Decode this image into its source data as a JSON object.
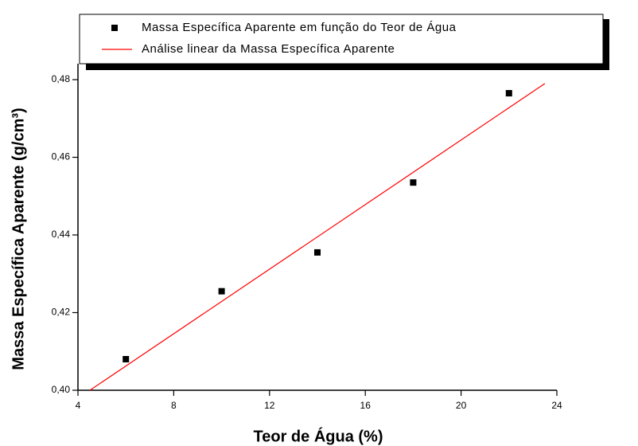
{
  "chart_data": {
    "type": "scatter",
    "xlabel": "Teor de Água (%)",
    "ylabel": "Massa Específica Aparente (g/cm³)",
    "xlim": [
      4,
      24
    ],
    "xticks": [
      4,
      8,
      12,
      16,
      20,
      24
    ],
    "ylim": [
      0.4,
      0.48
    ],
    "yticks": [
      {
        "value": 0.4,
        "label": "0,40"
      },
      {
        "value": 0.42,
        "label": "0,42"
      },
      {
        "value": 0.44,
        "label": "0,44"
      },
      {
        "value": 0.46,
        "label": "0,46"
      },
      {
        "value": 0.48,
        "label": "0,48"
      }
    ],
    "series": [
      {
        "name": "Massa Específica Aparente em função do Teor de Água",
        "color": "#000000",
        "style": "markers",
        "x": [
          6,
          10,
          14,
          18,
          22
        ],
        "values": [
          0.408,
          0.4255,
          0.4355,
          0.4535,
          0.4765
        ]
      },
      {
        "name": "Análise linear da Massa Específica Aparente",
        "color": "#ff0000",
        "style": "line",
        "x": [
          4.5,
          23.5
        ],
        "values": [
          0.4,
          0.479
        ]
      }
    ]
  }
}
